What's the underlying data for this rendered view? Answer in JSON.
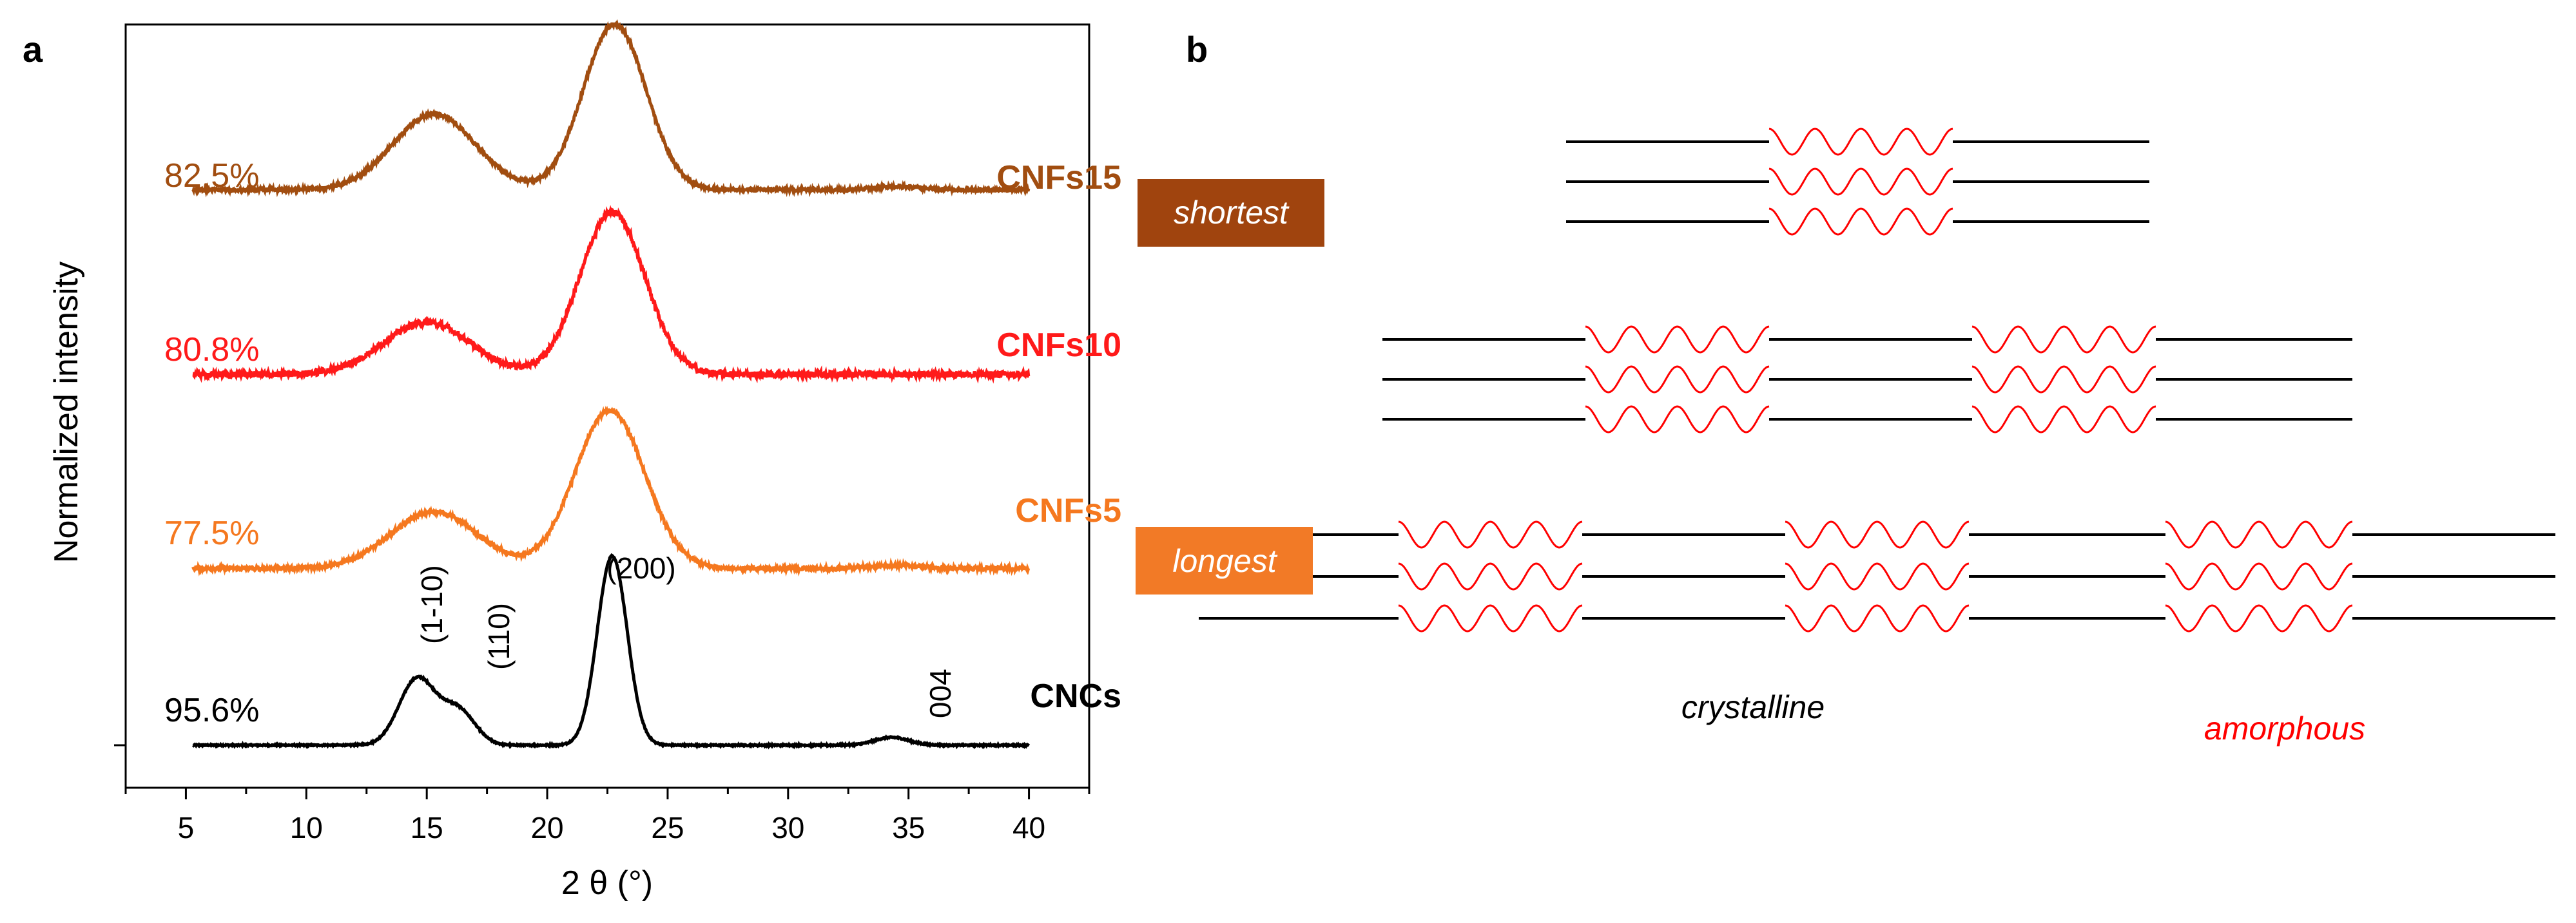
{
  "panel_a": {
    "label": "a"
  },
  "panel_b": {
    "label": "b",
    "tags": {
      "shortest": "shortest",
      "longest": "longest"
    },
    "legend": {
      "crystalline": "crystalline",
      "amorphous": "amorphous"
    }
  },
  "colors": {
    "CNCs": "#000000",
    "CNFs5": "#F5781F",
    "CNFs10": "#FF1A1A",
    "CNFs15": "#A14D10",
    "crystalline_line": "#000000",
    "amorphous_line": "#FF0000"
  },
  "chart_data": {
    "type": "line",
    "title": "",
    "xlabel": "2 θ (°)",
    "ylabel": "Normalized intensity",
    "xlim": [
      2.5,
      42.5
    ],
    "xticks": [
      5,
      10,
      15,
      20,
      25,
      30,
      35,
      40
    ],
    "ylim": [
      0,
      4.7
    ],
    "yticks_labeled": false,
    "series": [
      {
        "name": "CNCs",
        "crystallinity": "95.6%",
        "offset": 0,
        "peaks": [
          {
            "x": 14.6,
            "h": 0.42,
            "w": 0.75
          },
          {
            "x": 16.3,
            "h": 0.22,
            "w": 0.7
          },
          {
            "x": 22.7,
            "h": 1.2,
            "w": 0.62
          },
          {
            "x": 34.3,
            "h": 0.05,
            "w": 0.7
          }
        ],
        "noise": 0.004
      },
      {
        "name": "CNFs5",
        "crystallinity": "77.5%",
        "offset": 1.12,
        "peaks": [
          {
            "x": 15.3,
            "h": 0.36,
            "w": 1.8
          },
          {
            "x": 22.6,
            "h": 1.0,
            "w": 1.45
          },
          {
            "x": 34.5,
            "h": 0.02,
            "w": 1.0
          }
        ],
        "noise": 0.012
      },
      {
        "name": "CNFs10",
        "crystallinity": "80.8%",
        "offset": 2.35,
        "peaks": [
          {
            "x": 15.0,
            "h": 0.33,
            "w": 1.8
          },
          {
            "x": 22.7,
            "h": 1.03,
            "w": 1.35
          }
        ],
        "noise": 0.02
      },
      {
        "name": "CNFs15",
        "crystallinity": "82.5%",
        "offset": 3.52,
        "peaks": [
          {
            "x": 15.3,
            "h": 0.48,
            "w": 1.7
          },
          {
            "x": 22.8,
            "h": 1.05,
            "w": 1.3
          },
          {
            "x": 34.5,
            "h": 0.02,
            "w": 1.0
          }
        ],
        "noise": 0.01
      }
    ],
    "annotations": [
      {
        "text": "(1-10)",
        "x": 14.5,
        "rotation": -90
      },
      {
        "text": "(110)",
        "x": 16.5,
        "rotation": -90
      },
      {
        "text": "(200)",
        "x": 22.7,
        "rotation": 0
      },
      {
        "text": "004",
        "x": 34.3,
        "rotation": -90
      }
    ]
  }
}
